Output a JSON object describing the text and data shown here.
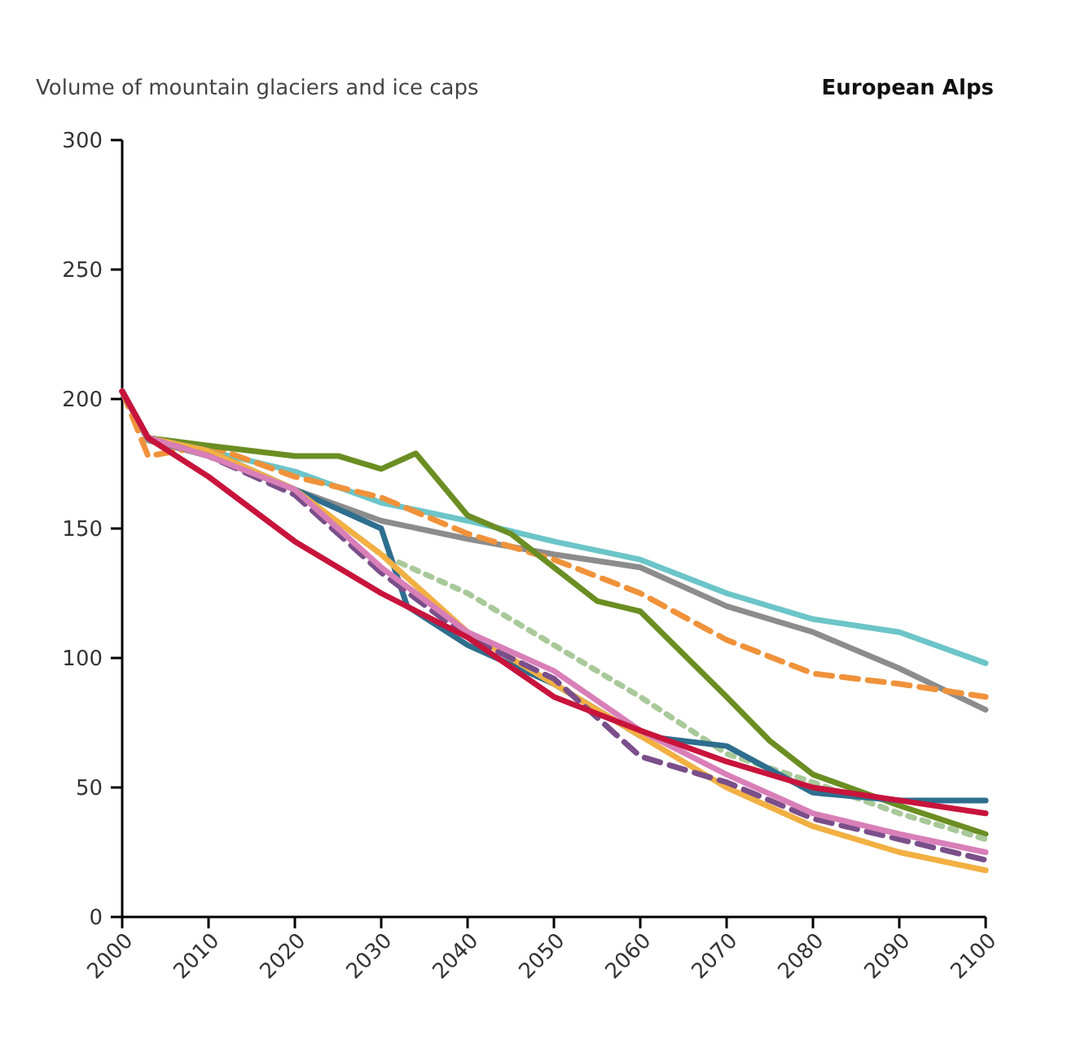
{
  "chart_data": {
    "type": "line",
    "title": "Volume of mountain glaciers and ice caps",
    "subtitle": "European Alps",
    "x": [
      2000,
      2003,
      2010,
      2020,
      2030,
      2040,
      2050,
      2060,
      2070,
      2080,
      2090,
      2100
    ],
    "xlim": [
      2000,
      2100
    ],
    "xticks": [
      2000,
      2010,
      2020,
      2030,
      2040,
      2050,
      2060,
      2070,
      2080,
      2090,
      2100
    ],
    "ylim": [
      0,
      300
    ],
    "yticks": [
      0,
      50,
      100,
      150,
      200,
      250,
      300
    ],
    "series": [
      {
        "color": "#6cc5c8",
        "values": [
          203,
          185,
          180,
          172,
          160,
          153,
          145,
          138,
          125,
          115,
          110,
          98
        ]
      },
      {
        "color": "#8c8c8c",
        "values": [
          203,
          184,
          178,
          165,
          153,
          146,
          140,
          135,
          120,
          110,
          96,
          80
        ]
      },
      {
        "color": "#f0923a",
        "line_style": "dashed",
        "values": [
          203,
          178,
          182,
          170,
          162,
          148,
          138,
          125,
          107,
          94,
          90,
          85
        ]
      },
      {
        "color": "#6b8e23",
        "x": [
          2000,
          2003,
          2010,
          2020,
          2025,
          2030,
          2034,
          2040,
          2045,
          2050,
          2055,
          2060,
          2070,
          2075,
          2080,
          2090,
          2100
        ],
        "values": [
          203,
          185,
          182,
          178,
          178,
          173,
          179,
          155,
          148,
          135,
          122,
          118,
          85,
          68,
          55,
          43,
          32
        ]
      },
      {
        "color": "#a9c99a",
        "line_style": "dotted",
        "values": [
          203,
          185,
          180,
          165,
          140,
          125,
          105,
          85,
          63,
          52,
          40,
          30
        ]
      },
      {
        "color": "#2e6e8e",
        "x": [
          2000,
          2003,
          2010,
          2020,
          2030,
          2033,
          2040,
          2050,
          2060,
          2070,
          2080,
          2090,
          2100
        ],
        "values": [
          203,
          185,
          180,
          165,
          150,
          120,
          105,
          90,
          70,
          66,
          48,
          45,
          45
        ]
      },
      {
        "color": "#f2b042",
        "values": [
          203,
          185,
          180,
          165,
          140,
          110,
          90,
          70,
          50,
          35,
          25,
          18
        ]
      },
      {
        "color": "#7a4f8a",
        "line_style": "dashed",
        "values": [
          203,
          185,
          178,
          163,
          133,
          108,
          92,
          62,
          52,
          38,
          30,
          22
        ]
      },
      {
        "color": "#d97fb8",
        "values": [
          203,
          185,
          178,
          165,
          135,
          110,
          95,
          72,
          55,
          40,
          32,
          25
        ]
      },
      {
        "color": "#c8143c",
        "values": [
          203,
          185,
          170,
          145,
          125,
          108,
          85,
          72,
          60,
          50,
          45,
          40
        ]
      }
    ]
  }
}
